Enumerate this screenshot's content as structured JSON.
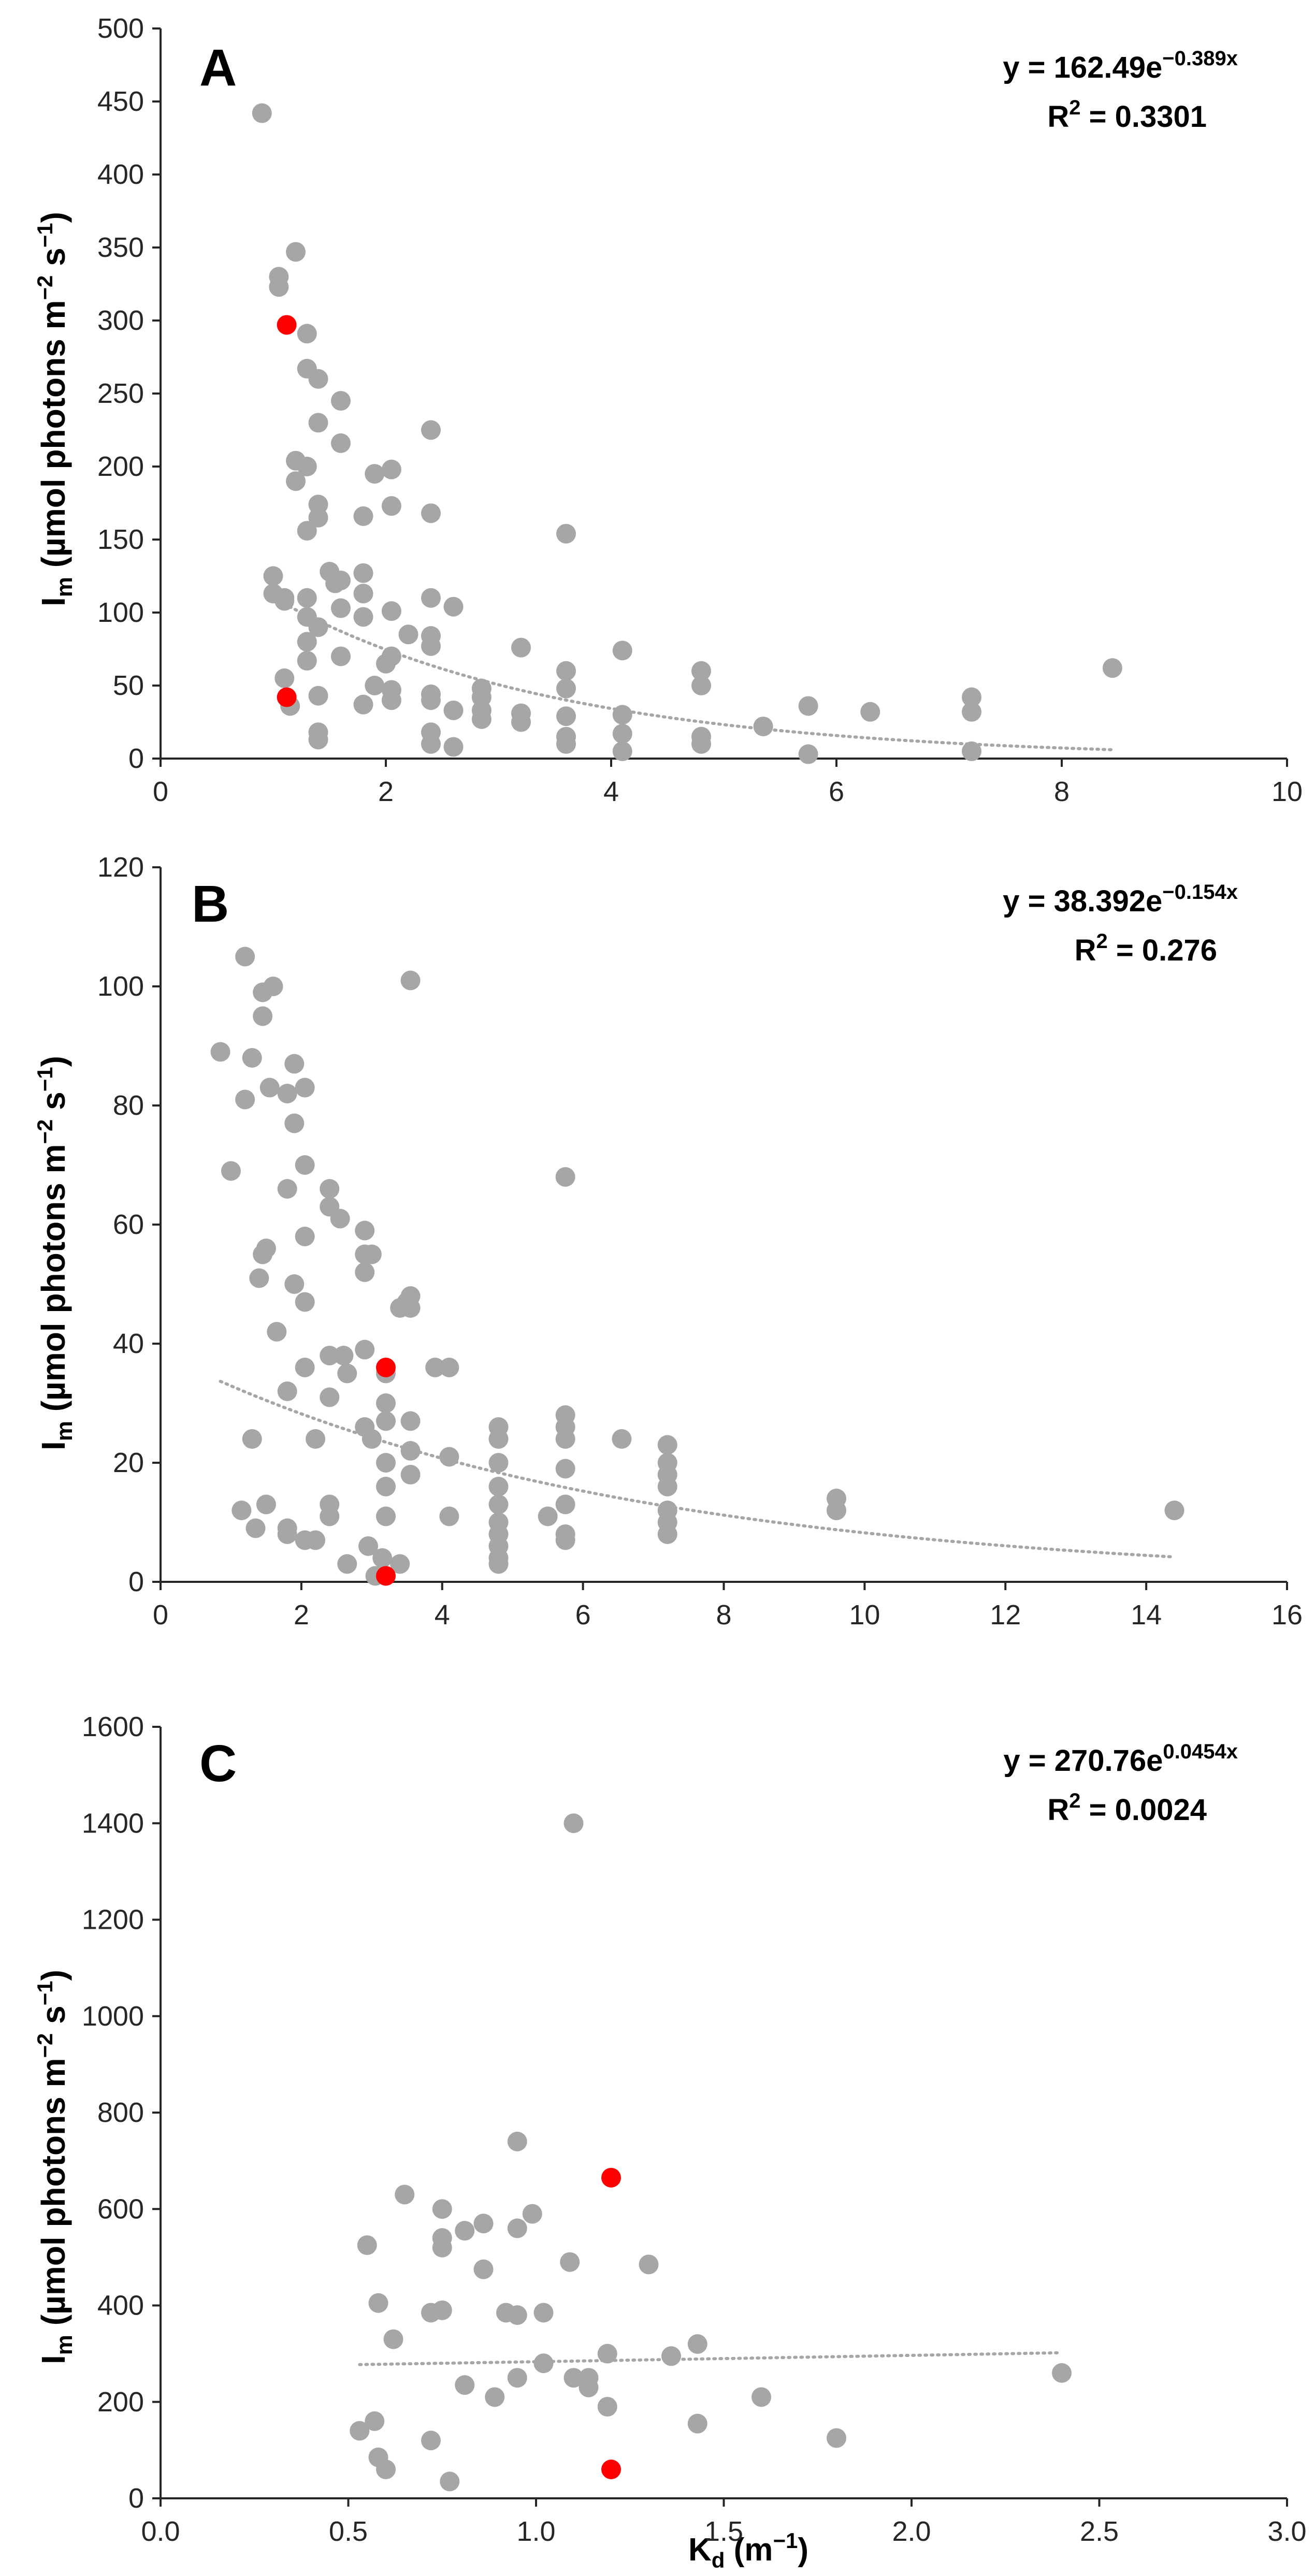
{
  "colors": {
    "point": "#a6a6a6",
    "highlight": "#ff0000",
    "trend": "#a6a6a6",
    "axis": "#262626"
  },
  "chart_data": [
    {
      "type": "scatter",
      "label": "A",
      "ylabel_main": "I",
      "ylabel_sub": "m",
      "ylabel_rest": " (µmol photons m",
      "ylabel_sup1": "−2",
      "ylabel_mid": " s",
      "ylabel_sup2": "−1",
      "ylabel_end": ")",
      "xlim": [
        0,
        10
      ],
      "xticks": [
        0,
        2,
        4,
        6,
        8,
        10
      ],
      "ylim": [
        0,
        500
      ],
      "yticks": [
        0,
        50,
        100,
        150,
        200,
        250,
        300,
        350,
        400,
        450,
        500
      ],
      "equation_base": "y = 162.49e",
      "equation_exp": "−0.389x",
      "r2_label": "R",
      "r2_sup": "2",
      "r2_value": " = 0.3301",
      "trend": {
        "a": 162.49,
        "b": -0.389,
        "x_range": [
          1.0,
          8.45
        ]
      },
      "points": [
        [
          0.9,
          442
        ],
        [
          1.0,
          125
        ],
        [
          1.0,
          113
        ],
        [
          1.05,
          330
        ],
        [
          1.05,
          323
        ],
        [
          1.1,
          110
        ],
        [
          1.1,
          108
        ],
        [
          1.1,
          55
        ],
        [
          1.15,
          36
        ],
        [
          1.2,
          347
        ],
        [
          1.2,
          204
        ],
        [
          1.2,
          190
        ],
        [
          1.3,
          291
        ],
        [
          1.3,
          267
        ],
        [
          1.3,
          200
        ],
        [
          1.3,
          156
        ],
        [
          1.3,
          110
        ],
        [
          1.3,
          97
        ],
        [
          1.3,
          80
        ],
        [
          1.3,
          67
        ],
        [
          1.4,
          260
        ],
        [
          1.4,
          230
        ],
        [
          1.4,
          174
        ],
        [
          1.4,
          165
        ],
        [
          1.4,
          90
        ],
        [
          1.4,
          43
        ],
        [
          1.4,
          18
        ],
        [
          1.4,
          13
        ],
        [
          1.5,
          128
        ],
        [
          1.55,
          120
        ],
        [
          1.6,
          245
        ],
        [
          1.6,
          216
        ],
        [
          1.6,
          122
        ],
        [
          1.6,
          103
        ],
        [
          1.6,
          70
        ],
        [
          1.8,
          166
        ],
        [
          1.8,
          127
        ],
        [
          1.8,
          113
        ],
        [
          1.8,
          97
        ],
        [
          1.8,
          37
        ],
        [
          1.9,
          195
        ],
        [
          1.9,
          50
        ],
        [
          2.0,
          65
        ],
        [
          2.05,
          198
        ],
        [
          2.05,
          173
        ],
        [
          2.05,
          101
        ],
        [
          2.05,
          70
        ],
        [
          2.05,
          47
        ],
        [
          2.05,
          40
        ],
        [
          2.2,
          85
        ],
        [
          2.4,
          225
        ],
        [
          2.4,
          168
        ],
        [
          2.4,
          110
        ],
        [
          2.4,
          84
        ],
        [
          2.4,
          77
        ],
        [
          2.4,
          44
        ],
        [
          2.4,
          40
        ],
        [
          2.4,
          18
        ],
        [
          2.4,
          10
        ],
        [
          2.6,
          104
        ],
        [
          2.6,
          33
        ],
        [
          2.6,
          8
        ],
        [
          2.85,
          48
        ],
        [
          2.85,
          42
        ],
        [
          2.85,
          33
        ],
        [
          2.85,
          27
        ],
        [
          3.2,
          76
        ],
        [
          3.2,
          31
        ],
        [
          3.2,
          25
        ],
        [
          3.6,
          154
        ],
        [
          3.6,
          60
        ],
        [
          3.6,
          48
        ],
        [
          3.6,
          29
        ],
        [
          3.6,
          15
        ],
        [
          3.6,
          10
        ],
        [
          4.1,
          74
        ],
        [
          4.1,
          30
        ],
        [
          4.1,
          17
        ],
        [
          4.1,
          5
        ],
        [
          4.8,
          60
        ],
        [
          4.8,
          50
        ],
        [
          4.8,
          15
        ],
        [
          4.8,
          10
        ],
        [
          5.35,
          22
        ],
        [
          5.75,
          36
        ],
        [
          5.75,
          3
        ],
        [
          6.3,
          32
        ],
        [
          7.2,
          42
        ],
        [
          7.2,
          32
        ],
        [
          7.2,
          5
        ],
        [
          8.45,
          62
        ]
      ],
      "highlight_points": [
        [
          1.12,
          297
        ],
        [
          1.12,
          42
        ]
      ]
    },
    {
      "type": "scatter",
      "label": "B",
      "ylabel_main": "I",
      "ylabel_sub": "m",
      "ylabel_rest": " (µmol photons m",
      "ylabel_sup1": "−2",
      "ylabel_mid": " s",
      "ylabel_sup2": "−1",
      "ylabel_end": ")",
      "xlim": [
        0,
        16
      ],
      "xticks": [
        0,
        2,
        4,
        6,
        8,
        10,
        12,
        14,
        16
      ],
      "ylim": [
        0,
        120
      ],
      "yticks": [
        0,
        20,
        40,
        60,
        80,
        100,
        120
      ],
      "equation_base": "y = 38.392e",
      "equation_exp": "−0.154x",
      "r2_label": "R",
      "r2_sup": "2",
      "r2_value": " = 0.276",
      "trend": {
        "a": 38.392,
        "b": -0.154,
        "x_range": [
          0.85,
          14.4
        ]
      },
      "points": [
        [
          0.85,
          89
        ],
        [
          1.0,
          69
        ],
        [
          1.15,
          12
        ],
        [
          1.2,
          105
        ],
        [
          1.2,
          81
        ],
        [
          1.3,
          88
        ],
        [
          1.3,
          24
        ],
        [
          1.35,
          9
        ],
        [
          1.4,
          51
        ],
        [
          1.45,
          99
        ],
        [
          1.45,
          95
        ],
        [
          1.45,
          55
        ],
        [
          1.5,
          56
        ],
        [
          1.5,
          13
        ],
        [
          1.55,
          83
        ],
        [
          1.6,
          100
        ],
        [
          1.65,
          42
        ],
        [
          1.8,
          82
        ],
        [
          1.8,
          66
        ],
        [
          1.8,
          32
        ],
        [
          1.8,
          9
        ],
        [
          1.8,
          8
        ],
        [
          1.9,
          87
        ],
        [
          1.9,
          77
        ],
        [
          1.9,
          50
        ],
        [
          2.05,
          83
        ],
        [
          2.05,
          70
        ],
        [
          2.05,
          58
        ],
        [
          2.05,
          47
        ],
        [
          2.05,
          36
        ],
        [
          2.05,
          7
        ],
        [
          2.2,
          24
        ],
        [
          2.2,
          7
        ],
        [
          2.4,
          66
        ],
        [
          2.4,
          63
        ],
        [
          2.4,
          38
        ],
        [
          2.4,
          31
        ],
        [
          2.4,
          13
        ],
        [
          2.4,
          11
        ],
        [
          2.55,
          61
        ],
        [
          2.6,
          38
        ],
        [
          2.65,
          35
        ],
        [
          2.65,
          3
        ],
        [
          2.9,
          59
        ],
        [
          2.9,
          55
        ],
        [
          2.9,
          52
        ],
        [
          2.9,
          39
        ],
        [
          2.9,
          26
        ],
        [
          2.95,
          6
        ],
        [
          3.0,
          55
        ],
        [
          3.0,
          24
        ],
        [
          3.05,
          1
        ],
        [
          3.15,
          4
        ],
        [
          3.2,
          35
        ],
        [
          3.2,
          30
        ],
        [
          3.2,
          27
        ],
        [
          3.2,
          20
        ],
        [
          3.2,
          16
        ],
        [
          3.2,
          11
        ],
        [
          3.4,
          46
        ],
        [
          3.4,
          3
        ],
        [
          3.5,
          47
        ],
        [
          3.55,
          101
        ],
        [
          3.55,
          48
        ],
        [
          3.55,
          46
        ],
        [
          3.55,
          27
        ],
        [
          3.55,
          22
        ],
        [
          3.55,
          18
        ],
        [
          3.9,
          36
        ],
        [
          4.1,
          36
        ],
        [
          4.1,
          21
        ],
        [
          4.1,
          11
        ],
        [
          4.8,
          26
        ],
        [
          4.8,
          24
        ],
        [
          4.8,
          20
        ],
        [
          4.8,
          16
        ],
        [
          4.8,
          13
        ],
        [
          4.8,
          10
        ],
        [
          4.8,
          8
        ],
        [
          4.8,
          6
        ],
        [
          4.8,
          4
        ],
        [
          4.8,
          3
        ],
        [
          5.5,
          11
        ],
        [
          5.75,
          68
        ],
        [
          5.75,
          28
        ],
        [
          5.75,
          26
        ],
        [
          5.75,
          24
        ],
        [
          5.75,
          19
        ],
        [
          5.75,
          13
        ],
        [
          5.75,
          8
        ],
        [
          5.75,
          7
        ],
        [
          6.55,
          24
        ],
        [
          7.2,
          23
        ],
        [
          7.2,
          20
        ],
        [
          7.2,
          18
        ],
        [
          7.2,
          16
        ],
        [
          7.2,
          12
        ],
        [
          7.2,
          10
        ],
        [
          7.2,
          8
        ],
        [
          9.6,
          14
        ],
        [
          9.6,
          12
        ],
        [
          14.4,
          12
        ]
      ],
      "highlight_points": [
        [
          3.2,
          36
        ],
        [
          3.2,
          1
        ]
      ]
    },
    {
      "type": "scatter",
      "label": "C",
      "ylabel_main": "I",
      "ylabel_sub": "m",
      "ylabel_rest": " (µmol photons m",
      "ylabel_sup1": "−2",
      "ylabel_mid": " s",
      "ylabel_sup2": "−1",
      "ylabel_end": ")",
      "xlabel_main": "K",
      "xlabel_sub": "d",
      "xlabel_rest": " (m",
      "xlabel_sup": "−1",
      "xlabel_end": ")",
      "xlim": [
        0,
        3
      ],
      "xticks": [
        "0.0",
        "0.5",
        "1.0",
        "1.5",
        "2.0",
        "2.5",
        "3.0"
      ],
      "ylim": [
        0,
        1600
      ],
      "yticks": [
        0,
        200,
        400,
        600,
        800,
        1000,
        1200,
        1400,
        1600
      ],
      "equation_base": "y = 270.76e",
      "equation_exp": "0.0454x",
      "r2_label": "R",
      "r2_sup": "2",
      "r2_value": " = 0.0024",
      "trend": {
        "a": 270.76,
        "b": 0.0454,
        "x_range": [
          0.53,
          2.4
        ]
      },
      "points": [
        [
          0.53,
          140
        ],
        [
          0.55,
          525
        ],
        [
          0.57,
          160
        ],
        [
          0.58,
          405
        ],
        [
          0.58,
          85
        ],
        [
          0.6,
          60
        ],
        [
          0.62,
          330
        ],
        [
          0.65,
          630
        ],
        [
          0.72,
          385
        ],
        [
          0.72,
          120
        ],
        [
          0.75,
          600
        ],
        [
          0.75,
          540
        ],
        [
          0.75,
          520
        ],
        [
          0.75,
          390
        ],
        [
          0.77,
          35
        ],
        [
          0.81,
          555
        ],
        [
          0.81,
          235
        ],
        [
          0.86,
          570
        ],
        [
          0.86,
          475
        ],
        [
          0.89,
          210
        ],
        [
          0.92,
          385
        ],
        [
          0.95,
          740
        ],
        [
          0.95,
          560
        ],
        [
          0.95,
          380
        ],
        [
          0.95,
          250
        ],
        [
          0.99,
          590
        ],
        [
          1.02,
          385
        ],
        [
          1.02,
          280
        ],
        [
          1.09,
          490
        ],
        [
          1.1,
          1400
        ],
        [
          1.1,
          250
        ],
        [
          1.14,
          250
        ],
        [
          1.14,
          230
        ],
        [
          1.19,
          300
        ],
        [
          1.19,
          190
        ],
        [
          1.3,
          485
        ],
        [
          1.36,
          295
        ],
        [
          1.43,
          320
        ],
        [
          1.43,
          155
        ],
        [
          1.6,
          210
        ],
        [
          1.8,
          125
        ],
        [
          2.4,
          260
        ]
      ],
      "highlight_points": [
        [
          1.2,
          665
        ],
        [
          1.2,
          60
        ]
      ]
    }
  ]
}
